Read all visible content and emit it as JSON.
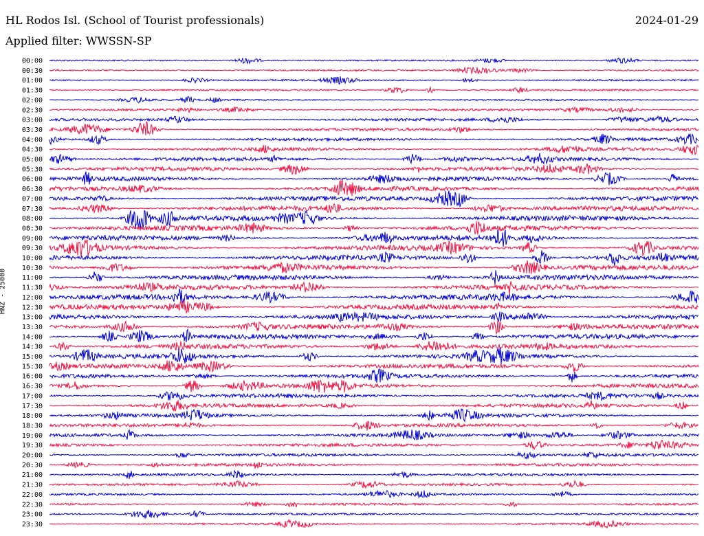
{
  "header": {
    "station": "HL Rodos Isl. (School of Tourist professionals)",
    "date": "2024-01-29",
    "filter": "Applied filter: WWSSN-SP"
  },
  "chart_data": {
    "type": "line",
    "title": "HL Rodos Isl. (School of Tourist professionals)",
    "ylabel": "HNZ - 25000",
    "xlabel": "",
    "colors": [
      "#0000d0",
      "#ee1040"
    ],
    "grid": false,
    "legend": "none",
    "time_labels": [
      "00:00",
      "00:30",
      "01:00",
      "01:30",
      "02:00",
      "02:30",
      "03:00",
      "03:30",
      "04:00",
      "04:30",
      "05:00",
      "05:30",
      "06:00",
      "06:30",
      "07:00",
      "07:30",
      "08:00",
      "08:30",
      "09:00",
      "09:30",
      "10:00",
      "10:30",
      "11:00",
      "11:30",
      "12:00",
      "12:30",
      "13:00",
      "13:30",
      "14:00",
      "14:30",
      "15:00",
      "15:30",
      "16:00",
      "16:30",
      "17:00",
      "17:30",
      "18:00",
      "18:30",
      "19:00",
      "19:30",
      "20:00",
      "20:30",
      "21:00",
      "21:30",
      "22:00",
      "22:30",
      "23:00",
      "23:30"
    ],
    "noise_levels": [
      0.15,
      0.2,
      0.2,
      0.25,
      0.2,
      0.3,
      0.45,
      0.5,
      0.5,
      0.55,
      0.65,
      0.75,
      0.8,
      0.85,
      0.9,
      0.95,
      1.0,
      1.0,
      1.0,
      1.0,
      1.0,
      1.0,
      1.0,
      1.0,
      1.0,
      1.0,
      0.95,
      0.95,
      0.9,
      0.9,
      0.85,
      0.85,
      0.8,
      0.8,
      0.75,
      0.7,
      0.65,
      0.6,
      0.55,
      0.55,
      0.5,
      0.45,
      0.4,
      0.35,
      0.3,
      0.3,
      0.25,
      0.25
    ]
  }
}
